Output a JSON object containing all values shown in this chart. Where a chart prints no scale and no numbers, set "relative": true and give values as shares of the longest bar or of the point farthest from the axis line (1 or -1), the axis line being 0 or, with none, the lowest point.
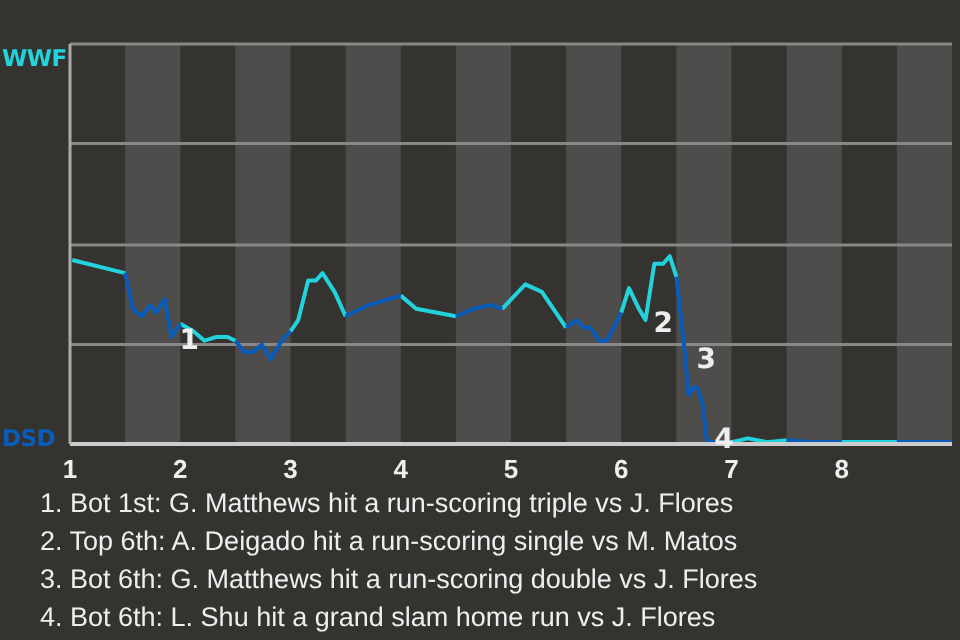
{
  "chart_data": {
    "type": "line",
    "relative": true,
    "x": [
      1.02,
      1.5,
      1.57,
      1.65,
      1.73,
      1.78,
      1.86,
      1.92,
      2.0,
      2.12,
      2.22,
      2.33,
      2.43,
      2.5,
      2.58,
      2.66,
      2.74,
      2.82,
      2.92,
      3.0,
      3.07,
      3.16,
      3.23,
      3.29,
      3.4,
      3.5,
      3.71,
      4.0,
      4.14,
      4.5,
      4.66,
      4.82,
      4.92,
      5.13,
      5.28,
      5.5,
      5.59,
      5.66,
      5.72,
      5.8,
      5.87,
      6.0,
      6.07,
      6.16,
      6.22,
      6.3,
      6.38,
      6.44,
      6.5,
      6.54,
      6.58,
      6.61,
      6.65,
      6.69,
      6.74,
      6.77,
      6.79,
      7.0,
      7.15,
      7.32,
      7.5,
      7.75,
      8.0,
      8.25,
      8.5,
      9.0
    ],
    "series": [
      {
        "color": "#22d3dd",
        "values": [
          0.98,
          0.91,
          null,
          null,
          null,
          null,
          null,
          null,
          0.64,
          0.6,
          0.55,
          0.57,
          0.57,
          0.55,
          null,
          null,
          null,
          null,
          null,
          0.6,
          0.66,
          0.87,
          0.87,
          0.91,
          0.81,
          0.68,
          null,
          0.79,
          0.72,
          0.68,
          null,
          null,
          0.72,
          0.85,
          0.81,
          0.62,
          null,
          null,
          null,
          null,
          null,
          0.7,
          0.83,
          0.72,
          0.66,
          0.96,
          0.96,
          1,
          0.89,
          null,
          null,
          null,
          null,
          null,
          null,
          null,
          null,
          0.01,
          0.03,
          0.01,
          0.02,
          null,
          0.01,
          0.01,
          0.01,
          null
        ]
      },
      {
        "color": "#0a5cba",
        "values": [
          null,
          0.91,
          0.72,
          0.68,
          0.74,
          0.7,
          0.77,
          0.57,
          0.64,
          null,
          null,
          null,
          null,
          0.55,
          0.49,
          0.49,
          0.53,
          0.45,
          0.55,
          0.6,
          null,
          null,
          null,
          null,
          null,
          0.68,
          0.74,
          0.79,
          null,
          0.68,
          0.72,
          0.74,
          0.72,
          null,
          null,
          0.62,
          0.66,
          0.62,
          0.62,
          0.55,
          0.55,
          0.7,
          null,
          null,
          null,
          null,
          null,
          null,
          0.89,
          0.68,
          0.47,
          0.26,
          0.3,
          0.3,
          0.21,
          0.04,
          0.01,
          0.01,
          null,
          null,
          0.02,
          0.01,
          0.01,
          null,
          0.01,
          0.01
        ]
      }
    ],
    "xlim": [
      1,
      9
    ],
    "xticks": [
      1,
      2,
      3,
      4,
      5,
      6,
      7,
      8
    ],
    "ref_lines": [
      {
        "axis": "y",
        "value": 0.53,
        "color": "#8a8886"
      },
      {
        "axis": "y",
        "value": 1.06,
        "color": "#8a8886"
      },
      {
        "axis": "y",
        "value": 1.6,
        "color": "#8a8886"
      },
      {
        "axis": "y",
        "value": 2.13,
        "color": "#8a8886"
      }
    ],
    "bands": [
      {
        "axis": "x",
        "from": 1.5,
        "to": 2,
        "color": "#4f4d4b"
      },
      {
        "axis": "x",
        "from": 2.5,
        "to": 3,
        "color": "#4f4d4b"
      },
      {
        "axis": "x",
        "from": 3.5,
        "to": 4,
        "color": "#4f4d4b"
      },
      {
        "axis": "x",
        "from": 4.5,
        "to": 5,
        "color": "#4f4d4b"
      },
      {
        "axis": "x",
        "from": 5.5,
        "to": 6,
        "color": "#4f4d4b"
      },
      {
        "axis": "x",
        "from": 6.5,
        "to": 7,
        "color": "#4f4d4b"
      },
      {
        "axis": "x",
        "from": 7.5,
        "to": 8,
        "color": "#4f4d4b"
      },
      {
        "axis": "x",
        "from": 8.5,
        "to": 9,
        "color": "#4f4d4b"
      }
    ],
    "annotations": [
      "WWF",
      "DSD",
      {
        "text": "1",
        "x": 1.92,
        "y": 0.57
      },
      {
        "text": "2",
        "x": 6.22,
        "y": 0.66
      },
      {
        "text": "3",
        "x": 6.61,
        "y": 0.47
      },
      {
        "text": "4",
        "x": 6.77,
        "y": 0.04
      },
      "1. Bot 1st: G. Matthews hit a run-scoring triple vs J. Flores",
      "2. Top 6th: A. Deigado hit a run-scoring single vs M. Matos",
      "3. Bot 6th: G. Matthews hit a run-scoring double vs J. Flores",
      "4. Bot 6th: L. Shu hit a grand slam home run vs J. Flores"
    ]
  }
}
